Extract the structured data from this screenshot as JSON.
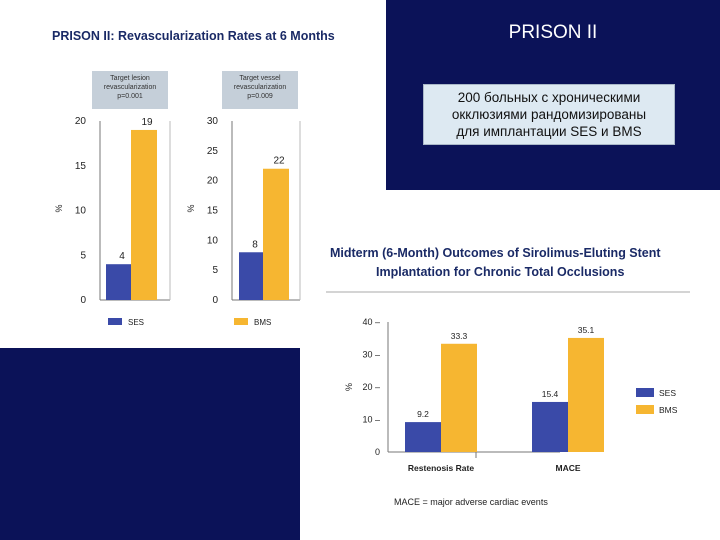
{
  "slide": {
    "title": "PRISON II",
    "info_lines": [
      "200 больных с хроническими",
      "окклюзиями рандомизированы",
      "для имплантации SES и BMS"
    ]
  },
  "colors": {
    "background_panel": "#0b1258",
    "ses": "#3a4aa8",
    "bms": "#f6b631",
    "figure_title": "#1a2a66"
  },
  "chart_data": [
    {
      "type": "bar",
      "title": "PRISON II: Revascularization Rates at 6 Months",
      "annotation": [
        "Target lesion",
        "revascularization",
        "p=0.001"
      ],
      "ylabel": "%",
      "ylim": [
        0,
        20
      ],
      "yticks": [
        "0",
        "5",
        "10",
        "15",
        "20"
      ],
      "series": [
        {
          "name": "SES",
          "values": [
            4
          ],
          "labels": [
            "4"
          ]
        },
        {
          "name": "BMS",
          "values": [
            19
          ],
          "labels": [
            "19"
          ]
        }
      ],
      "legend": [
        "SES"
      ],
      "grid": false
    },
    {
      "type": "bar",
      "annotation": [
        "Target vessel",
        "revascularization",
        "p=0.009"
      ],
      "ylabel": "%",
      "ylim": [
        0,
        30
      ],
      "yticks": [
        "0",
        "5",
        "10",
        "15",
        "20",
        "25",
        "30"
      ],
      "series": [
        {
          "name": "SES",
          "values": [
            8
          ],
          "labels": [
            "8"
          ]
        },
        {
          "name": "BMS",
          "values": [
            22
          ],
          "labels": [
            "22"
          ]
        }
      ],
      "legend": [
        "BMS"
      ],
      "grid": false
    },
    {
      "type": "bar",
      "title": [
        "Midterm (6-Month) Outcomes of Sirolimus-Eluting Stent",
        "Implantation for Chronic Total Occlusions"
      ],
      "ylabel": "%",
      "ylim": [
        0,
        40
      ],
      "yticks": [
        "0",
        "10 –",
        "20 –",
        "30 –",
        "40 –"
      ],
      "categories": [
        "Restenosis Rate",
        "MACE"
      ],
      "series": [
        {
          "name": "SES",
          "values": [
            9.2,
            15.4
          ],
          "labels": [
            "9.2",
            "15.4"
          ]
        },
        {
          "name": "BMS",
          "values": [
            33.3,
            35.1
          ],
          "labels": [
            "33.3",
            "35.1"
          ]
        }
      ],
      "legend": [
        "SES",
        "BMS"
      ],
      "legend_position": "right",
      "footnote": "MACE = major adverse cardiac events",
      "grid": false
    }
  ]
}
